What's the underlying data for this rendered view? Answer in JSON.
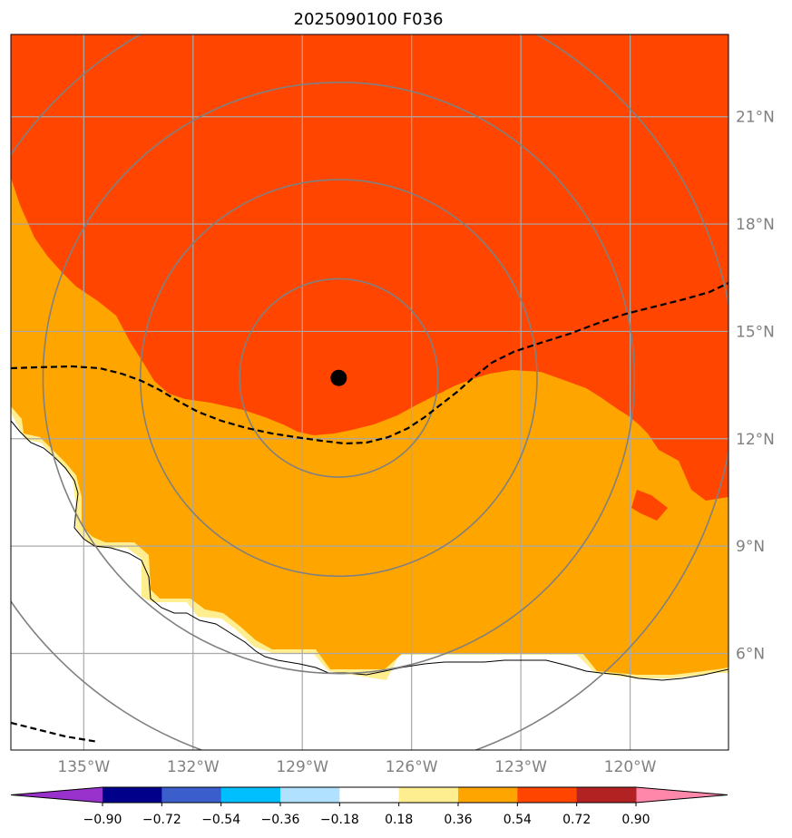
{
  "title": "2025090100 F036",
  "map": {
    "lon_range": [
      -137,
      -117.3
    ],
    "lat_range": [
      3.3,
      23.3
    ],
    "lon_ticks": [
      {
        "value": -135,
        "label": "135°W"
      },
      {
        "value": -132,
        "label": "132°W"
      },
      {
        "value": -129,
        "label": "129°W"
      },
      {
        "value": -126,
        "label": "126°W"
      },
      {
        "value": -123,
        "label": "123°W"
      },
      {
        "value": -120,
        "label": "120°W"
      }
    ],
    "lat_ticks": [
      {
        "value": 6,
        "label": "6°N"
      },
      {
        "value": 9,
        "label": "9°N"
      },
      {
        "value": 12,
        "label": "12°N"
      },
      {
        "value": 15,
        "label": "15°N"
      },
      {
        "value": 18,
        "label": "18°N"
      },
      {
        "value": 21,
        "label": "21°N"
      }
    ],
    "storm_center": {
      "lon": -128,
      "lat": 13.7
    },
    "range_rings_deg": [
      2.75,
      5.5,
      8.2,
      11.0
    ],
    "colors": {
      "very_high": "#ff4500",
      "high": "#ffa500",
      "moderate": "#ffee90",
      "low": "#ffffff",
      "ring": "#808080",
      "grid": "#a9a9a9",
      "coast": "#000000",
      "dash": "#000000",
      "center": "#000000"
    }
  },
  "colorbar": {
    "tick_labels": [
      "−0.90",
      "−0.72",
      "−0.54",
      "−0.36",
      "−0.18",
      "0.18",
      "0.36",
      "0.54",
      "0.72",
      "0.90"
    ],
    "under_color": "#9932cc",
    "over_color": "#ff88aa",
    "colors": [
      "#00008b",
      "#3a5fcd",
      "#00bfff",
      "#b0e2ff",
      "#ffffff",
      "#ffee90",
      "#ffa500",
      "#ff4500",
      "#b22222"
    ]
  }
}
